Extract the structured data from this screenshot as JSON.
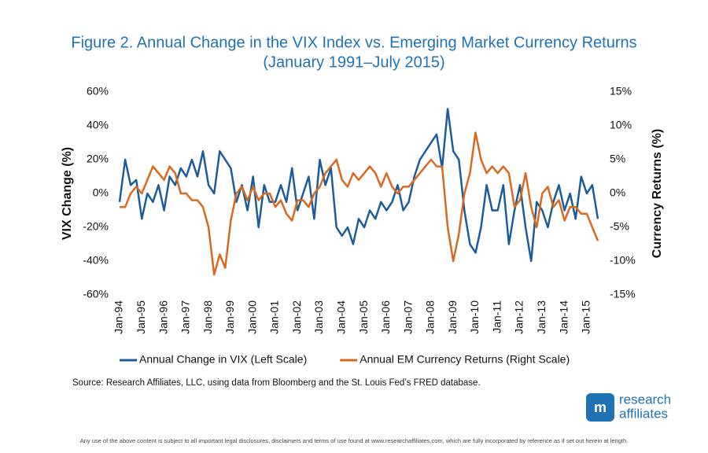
{
  "chart_data": {
    "type": "line",
    "title": "Figure 2. Annual Change in the VIX Index vs. Emerging Market Currency Returns",
    "subtitle": "(January 1991–July 2015)",
    "ylabel": "VIX Change (%)",
    "y2label": "Currency Returns (%)",
    "categories": [
      "Jan-94",
      null,
      null,
      null,
      "Jan-95",
      null,
      null,
      null,
      "Jan-96",
      null,
      null,
      null,
      "Jan-97",
      null,
      null,
      null,
      "Jan-98",
      null,
      null,
      null,
      "Jan-99",
      null,
      null,
      null,
      "Jan-00",
      null,
      null,
      null,
      "Jan-01",
      null,
      null,
      null,
      "Jan-02",
      null,
      null,
      null,
      "Jan-03",
      null,
      null,
      null,
      "Jan-04",
      null,
      null,
      null,
      "Jan-05",
      null,
      null,
      null,
      "Jan-06",
      null,
      null,
      null,
      "Jan-07",
      null,
      null,
      null,
      "Jan-08",
      null,
      null,
      null,
      "Jan-09",
      null,
      null,
      null,
      "Jan-10",
      null,
      null,
      null,
      "Jan-11",
      null,
      null,
      null,
      "Jan-12",
      null,
      null,
      null,
      "Jan-13",
      null,
      null,
      null,
      "Jan-14",
      null,
      null,
      null,
      "Jan-15",
      null,
      null
    ],
    "series": [
      {
        "name": "Annual Change in VIX (Left Scale)",
        "color": "#1c5d99",
        "axis": "y",
        "values": [
          -5,
          20,
          5,
          8,
          -15,
          0,
          -5,
          5,
          -10,
          10,
          5,
          15,
          10,
          20,
          10,
          25,
          5,
          0,
          25,
          20,
          15,
          -5,
          5,
          -10,
          10,
          -20,
          5,
          -5,
          -5,
          5,
          -5,
          15,
          -10,
          0,
          10,
          -15,
          20,
          5,
          15,
          -20,
          -25,
          -20,
          -30,
          -15,
          -20,
          -10,
          -15,
          -5,
          -10,
          -5,
          5,
          -10,
          -5,
          10,
          20,
          25,
          30,
          35,
          15,
          50,
          25,
          20,
          -10,
          -30,
          -35,
          -20,
          5,
          -10,
          -10,
          5,
          -30,
          -10,
          5,
          -20,
          -40,
          -5,
          -10,
          -20,
          -5,
          5,
          -10,
          0,
          -15,
          10,
          0,
          5,
          -15
        ]
      },
      {
        "name": "Annual EM Currency Returns (Right Scale)",
        "color": "#d9691f",
        "axis": "y2",
        "values": [
          -2,
          -2,
          0,
          1,
          0,
          2,
          4,
          3,
          2,
          4,
          3,
          0,
          0,
          -1,
          -1,
          -2,
          -5,
          -12,
          -9,
          -11,
          -4,
          0,
          1,
          -1,
          1,
          -1,
          0,
          0,
          -2,
          -1,
          -3,
          -4,
          -1,
          -1,
          -2,
          0,
          1,
          3,
          4,
          5,
          2,
          1,
          3,
          2,
          3,
          4,
          3,
          1,
          3,
          1,
          0,
          1,
          1,
          2,
          3,
          4,
          5,
          4,
          4,
          -5,
          -10,
          -6,
          0,
          3,
          9,
          5,
          3,
          4,
          3,
          4,
          3,
          -2,
          -1,
          3,
          -2,
          -5,
          0,
          1,
          -2,
          -1,
          -4,
          -2,
          -2,
          -3,
          -3,
          -5,
          -7
        ]
      }
    ],
    "ylim": [
      -60,
      60
    ],
    "yticks": [
      {
        "value": -60,
        "label": "-60%"
      },
      {
        "value": -40,
        "label": "-40%"
      },
      {
        "value": -20,
        "label": "-20%"
      },
      {
        "value": 0,
        "label": "0%"
      },
      {
        "value": 20,
        "label": "20%"
      },
      {
        "value": 40,
        "label": "40%"
      },
      {
        "value": 60,
        "label": "60%"
      }
    ],
    "y2lim": [
      -15,
      15
    ],
    "y2ticks": [
      {
        "value": -15,
        "label": "-15%"
      },
      {
        "value": -10,
        "label": "-10%"
      },
      {
        "value": -5,
        "label": "-5%"
      },
      {
        "value": 0,
        "label": "0%"
      },
      {
        "value": 5,
        "label": "5%"
      },
      {
        "value": 10,
        "label": "10%"
      },
      {
        "value": 15,
        "label": "15%"
      }
    ],
    "grid": false,
    "legend": "bottom"
  },
  "source": "Source: Research Affiliates, LLC, using data from Bloomberg and the St. Louis Fed’s FRED database.",
  "logo": [
    "research",
    "affiliates"
  ],
  "disclaimer": "Any use of the above content is subject to all important legal disclosures, disclaimers and terms of use found at www.researchaffiliates.com, which are fully incorporated by reference as if set out herein at length."
}
